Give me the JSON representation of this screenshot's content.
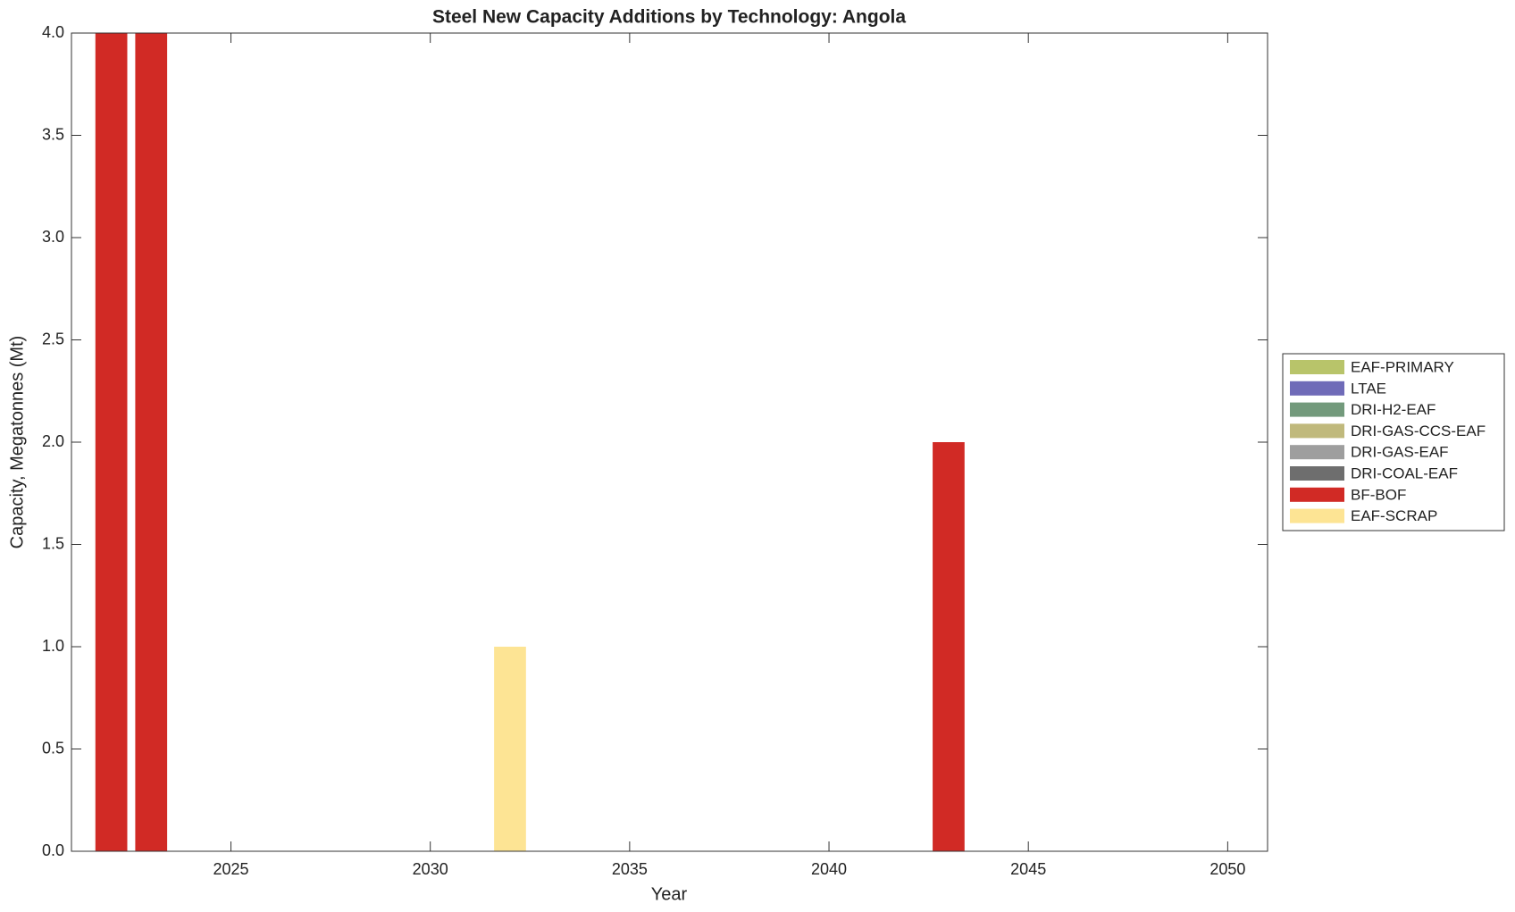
{
  "chart_data": {
    "type": "stacked_bar",
    "title": "Steel New Capacity Additions by Technology: Angola",
    "xlabel": "Year",
    "ylabel": "Capacity, Megatonnes (Mt)",
    "x": [
      2022,
      2023,
      2032,
      2043
    ],
    "series": [
      {
        "name": "EAF-PRIMARY",
        "color": "#b8c46a",
        "values": [
          0,
          0,
          0,
          0
        ]
      },
      {
        "name": "LTAE",
        "color": "#6f6bb8",
        "values": [
          0,
          0,
          0,
          0
        ]
      },
      {
        "name": "DRI-H2-EAF",
        "color": "#739a7c",
        "values": [
          0,
          0,
          0,
          0
        ]
      },
      {
        "name": "DRI-GAS-CCS-EAF",
        "color": "#c0b97c",
        "values": [
          0,
          0,
          0,
          0
        ]
      },
      {
        "name": "DRI-GAS-EAF",
        "color": "#9e9e9e",
        "values": [
          0,
          0,
          0,
          0
        ]
      },
      {
        "name": "DRI-COAL-EAF",
        "color": "#6e6e6e",
        "values": [
          0,
          0,
          0,
          0
        ]
      },
      {
        "name": "BF-BOF",
        "color": "#d12a25",
        "values": [
          4,
          4,
          0,
          2
        ]
      },
      {
        "name": "EAF-SCRAP",
        "color": "#fde494",
        "values": [
          0,
          0,
          1,
          0
        ]
      }
    ],
    "xlim": [
      2021,
      2051
    ],
    "xticks": [
      2025,
      2030,
      2035,
      2040,
      2045,
      2050
    ],
    "ylim": [
      0,
      4
    ],
    "yticks": [
      {
        "value": 0,
        "label": "0.0"
      },
      0.5,
      {
        "value": 1,
        "label": "1.0"
      },
      1.5,
      {
        "value": 2,
        "label": "2.0"
      },
      2.5,
      {
        "value": 3,
        "label": "3.0"
      },
      3.5,
      {
        "value": 4,
        "label": "4.0"
      }
    ],
    "grid": false,
    "legend": "right"
  }
}
